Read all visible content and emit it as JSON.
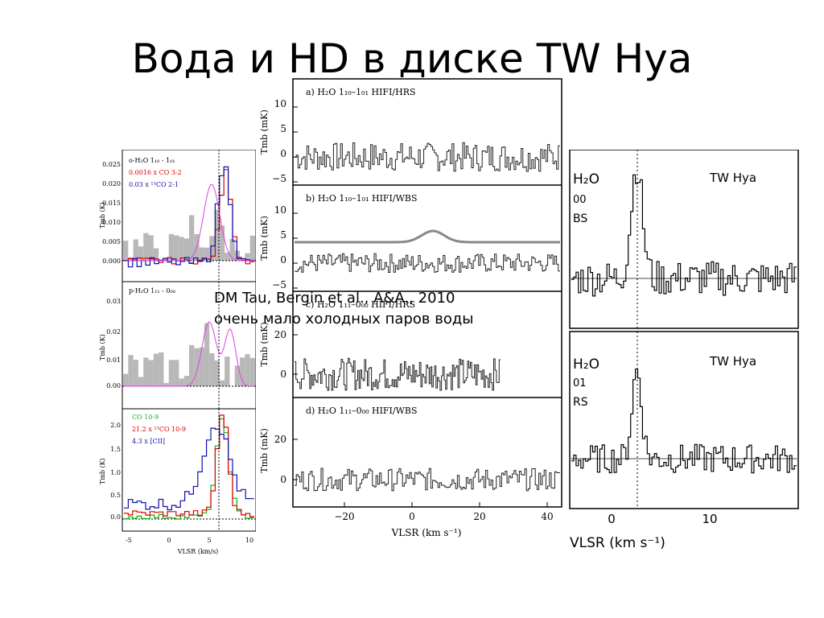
{
  "slide": {
    "title": "Вода и HD в диске TW Hya",
    "caption_line1": "DM Tau, Bergin et al., A&A., 2010",
    "caption_line2": "очень мало холодных паров воды"
  },
  "figure_left": {
    "panel1": {
      "legend": [
        "o-H₂O 1₁₀ - 1₀₁",
        "0.0016 x CO 3-2",
        "0.03 x ¹³CO 2-1"
      ],
      "legend_colors": [
        "#000000",
        "#e00000",
        "#1010b0"
      ],
      "ylabel": "Tmb (K)",
      "yticks": [
        "0.025",
        "0.020",
        "0.015",
        "0.010",
        "0.005",
        "0.000"
      ]
    },
    "panel2": {
      "legend": [
        "p-H₂O 1₁₁ - 0₀₀"
      ],
      "ylabel": "Tmb (K)",
      "yticks": [
        "0.03",
        "0.02",
        "0.01",
        "0.00"
      ]
    },
    "panel3": {
      "legend": [
        "CO 10-9",
        "21.2 x ¹³CO 10-9",
        "4.3 x [CII]"
      ],
      "legend_colors": [
        "#10b010",
        "#e00000",
        "#1010b0"
      ],
      "ylabel": "Tmb (K)",
      "yticks": [
        "2.0",
        "1.5",
        "1.0",
        "0.5",
        "0.0"
      ]
    },
    "xticks": [
      "-5",
      "0",
      "5",
      "10"
    ],
    "xlabel": "VLSR (km/s)"
  },
  "figure_center": {
    "panels": [
      {
        "label": "a) H₂O 1₁₀–1₀₁  HIFI/HRS",
        "yticks": [
          "10",
          "5",
          "0",
          "−5"
        ]
      },
      {
        "label": "b) H₂O 1₁₀–1₀₁  HIFI/WBS",
        "yticks": [
          "10",
          "5",
          "0",
          "−5"
        ]
      },
      {
        "label": "c) H₂O 1₁₁–0₀₀  HIFI/HRS",
        "yticks": [
          "20",
          "0"
        ]
      },
      {
        "label": "d) H₂O 1₁₁–0₀₀  HIFI/WBS",
        "yticks": [
          "20",
          "0"
        ]
      }
    ],
    "ylabel": "Tmb (mK)",
    "xticks": [
      "−20",
      "0",
      "20",
      "40"
    ],
    "xlabel": "VLSR (km s⁻¹)"
  },
  "figure_right": {
    "panels": [
      {
        "label": "TW Hya",
        "species": "H₂O",
        "sub1": "00",
        "sub2": "BS"
      },
      {
        "label": "TW Hya",
        "species": "H₂O",
        "sub1": "01",
        "sub2": "RS"
      }
    ],
    "xticks": [
      "0",
      "10"
    ],
    "xlabel": "VLSR (km s⁻¹)"
  }
}
